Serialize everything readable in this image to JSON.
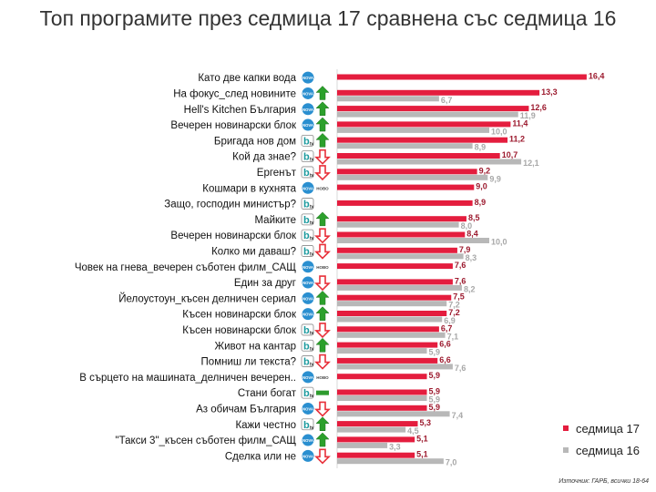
{
  "chart_data": {
    "type": "bar",
    "title": "Топ програмите през седмица 17 сравнена със седмица 16",
    "series": [
      {
        "name": "седмица 17",
        "color": "#e41d3e"
      },
      {
        "name": "седмица 16",
        "color": "#b8b8b8"
      }
    ],
    "rows": [
      {
        "label": "Като две капки вода",
        "channel": "nova",
        "trend": "none",
        "w17": 16.4,
        "w17_label": "16,4",
        "w16": null,
        "w16_label": ""
      },
      {
        "label": "На фокус_след новините",
        "channel": "nova",
        "trend": "up",
        "w17": 13.3,
        "w17_label": "13,3",
        "w16": 6.7,
        "w16_label": "6,7"
      },
      {
        "label": "Hell's Kitchen България",
        "channel": "nova",
        "trend": "up",
        "w17": 12.6,
        "w17_label": "12,6",
        "w16": 11.9,
        "w16_label": "11,9"
      },
      {
        "label": "Вечерен новинарски блок",
        "channel": "nova",
        "trend": "up",
        "w17": 11.4,
        "w17_label": "11,4",
        "w16": 10.0,
        "w16_label": "10,0"
      },
      {
        "label": "Бригада нов дом",
        "channel": "btv",
        "trend": "up",
        "w17": 11.2,
        "w17_label": "11,2",
        "w16": 8.9,
        "w16_label": "8,9"
      },
      {
        "label": "Кой да знае?",
        "channel": "btv",
        "trend": "down",
        "w17": 10.7,
        "w17_label": "10,7",
        "w16": 12.1,
        "w16_label": "12,1"
      },
      {
        "label": "Ергенът",
        "channel": "btv",
        "trend": "down",
        "w17": 9.2,
        "w17_label": "9,2",
        "w16": 9.9,
        "w16_label": "9,9"
      },
      {
        "label": "Кошмари в кухнята",
        "channel": "nova",
        "trend": "new",
        "w17": 9.0,
        "w17_label": "9,0",
        "w16": null,
        "w16_label": ""
      },
      {
        "label": "Защо, господин министър?",
        "channel": "btv",
        "trend": "none",
        "w17": 8.9,
        "w17_label": "8,9",
        "w16": null,
        "w16_label": ""
      },
      {
        "label": "Майките",
        "channel": "btv",
        "trend": "up",
        "w17": 8.5,
        "w17_label": "8,5",
        "w16": 8.0,
        "w16_label": "8,0"
      },
      {
        "label": "Вечерен новинарски блок",
        "channel": "btv",
        "trend": "down",
        "w17": 8.4,
        "w17_label": "8,4",
        "w16": 10.0,
        "w16_label": "10,0"
      },
      {
        "label": "Колко ми даваш?",
        "channel": "btv",
        "trend": "down",
        "w17": 7.9,
        "w17_label": "7,9",
        "w16": 8.3,
        "w16_label": "8,3"
      },
      {
        "label": "Човек на гнева_вечерен съботен филм_САЩ",
        "channel": "nova",
        "trend": "new",
        "w17": 7.6,
        "w17_label": "7,6",
        "w16": null,
        "w16_label": ""
      },
      {
        "label": "Един за друг",
        "channel": "nova",
        "trend": "down",
        "w17": 7.6,
        "w17_label": "7,6",
        "w16": 8.2,
        "w16_label": "8,2"
      },
      {
        "label": "Йелоустоун_късен делничен сериал",
        "channel": "nova",
        "trend": "up",
        "w17": 7.5,
        "w17_label": "7,5",
        "w16": 7.2,
        "w16_label": "7,2"
      },
      {
        "label": "Късен новинарски блок",
        "channel": "nova",
        "trend": "up",
        "w17": 7.2,
        "w17_label": "7,2",
        "w16": 6.9,
        "w16_label": "6,9"
      },
      {
        "label": "Късен новинарски блок",
        "channel": "btv",
        "trend": "down",
        "w17": 6.7,
        "w17_label": "6,7",
        "w16": 7.1,
        "w16_label": "7,1"
      },
      {
        "label": "Живот на кантар",
        "channel": "btv",
        "trend": "up",
        "w17": 6.6,
        "w17_label": "6,6",
        "w16": 5.9,
        "w16_label": "5,9"
      },
      {
        "label": "Помниш ли текста?",
        "channel": "btv",
        "trend": "down",
        "w17": 6.6,
        "w17_label": "6,6",
        "w16": 7.6,
        "w16_label": "7,6"
      },
      {
        "label": "В сърцето на машината_делничен вечерен..",
        "channel": "nova",
        "trend": "new",
        "w17": 5.9,
        "w17_label": "5,9",
        "w16": null,
        "w16_label": ""
      },
      {
        "label": "Стани богат",
        "channel": "btv",
        "trend": "same",
        "w17": 5.9,
        "w17_label": "5,9",
        "w16": 5.9,
        "w16_label": "5,9"
      },
      {
        "label": "Аз обичам България",
        "channel": "nova",
        "trend": "down",
        "w17": 5.9,
        "w17_label": "5,9",
        "w16": 7.4,
        "w16_label": "7,4"
      },
      {
        "label": "Кажи честно",
        "channel": "btv",
        "trend": "up",
        "w17": 5.3,
        "w17_label": "5,3",
        "w16": 4.5,
        "w16_label": "4,5"
      },
      {
        "label": "\"Такси 3\"_късен съботен филм_САЩ",
        "channel": "nova",
        "trend": "up",
        "w17": 5.1,
        "w17_label": "5,1",
        "w16": 3.3,
        "w16_label": "3,3"
      },
      {
        "label": "Сделка или не",
        "channel": "nova",
        "trend": "down",
        "w17": 5.1,
        "w17_label": "5,1",
        "w16": 7.0,
        "w16_label": "7,0"
      }
    ],
    "badges": {
      "nova": "NOVA",
      "btv": "b",
      "btv_suffix": "tv",
      "new": "НОВО"
    },
    "colors": {
      "up": "#2ca02c",
      "down": "#e8303a",
      "same": "#2e9b2e",
      "nova": "#2a8fd0",
      "btv": "#1c9a9e"
    },
    "legend_position": "bottom-right",
    "grid": false
  },
  "source_note": "Източник: ГАРБ, всички 18-64"
}
